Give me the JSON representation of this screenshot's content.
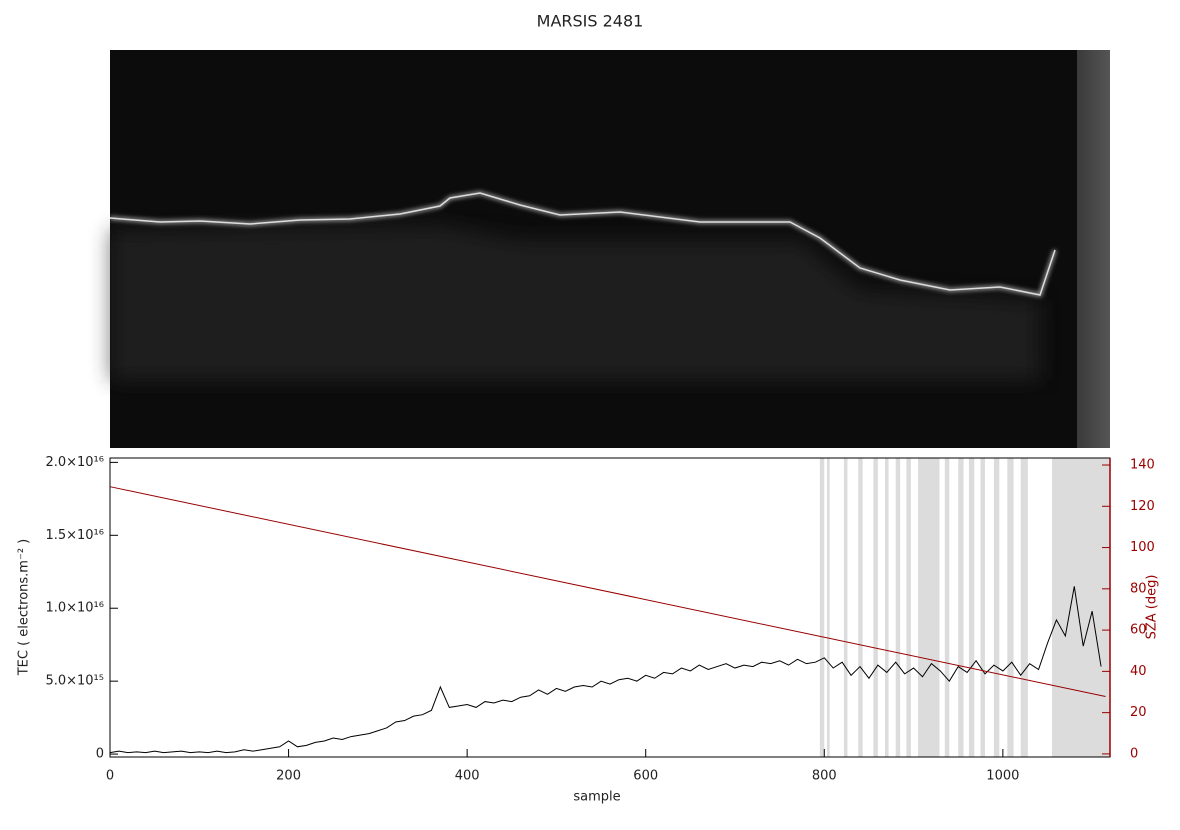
{
  "chart_data": {
    "type": "line",
    "title": "MARSIS 2481",
    "x_label": "sample",
    "y_label": "TEC ( electrons.m⁻² )",
    "y2_label": "SZA (deg)",
    "xlim": [
      0,
      1120
    ],
    "xticks": [
      0,
      200,
      400,
      600,
      800,
      1000
    ],
    "ylim": [
      -200000000000000.0,
      2.03e+16
    ],
    "yticks": [
      0,
      {
        "value": 5000000000000000.0,
        "label": "5.0×10¹⁵"
      },
      {
        "value": 1e+16,
        "label": "1.0×10¹⁶"
      },
      {
        "value": 1.5e+16,
        "label": "1.5×10¹⁶"
      },
      {
        "value": 2e+16,
        "label": "2.0×10¹⁶"
      }
    ],
    "y2lim": [
      -1.5,
      143.4
    ],
    "y2ticks": [
      0,
      20,
      40,
      60,
      80,
      100,
      120,
      140
    ],
    "y2_color": "#990000",
    "shade_color": "#dcdcdc",
    "shaded_ranges": [
      [
        795,
        800
      ],
      [
        803,
        806
      ],
      [
        822,
        826
      ],
      [
        838,
        843
      ],
      [
        855,
        860
      ],
      [
        868,
        872
      ],
      [
        880,
        885
      ],
      [
        892,
        897
      ],
      [
        905,
        929
      ],
      [
        935,
        940
      ],
      [
        950,
        956
      ],
      [
        962,
        968
      ],
      [
        975,
        980
      ],
      [
        990,
        996
      ],
      [
        1005,
        1012
      ],
      [
        1020,
        1028
      ],
      [
        1055,
        1120
      ]
    ],
    "series": [
      {
        "name": "TEC",
        "color": "#000000",
        "x": [
          0,
          10,
          20,
          30,
          40,
          50,
          60,
          70,
          80,
          90,
          100,
          110,
          120,
          130,
          140,
          150,
          160,
          170,
          180,
          190,
          200,
          210,
          220,
          230,
          240,
          250,
          260,
          270,
          280,
          290,
          300,
          310,
          320,
          330,
          340,
          350,
          360,
          370,
          380,
          390,
          400,
          410,
          420,
          430,
          440,
          450,
          460,
          470,
          480,
          490,
          500,
          510,
          520,
          530,
          540,
          550,
          560,
          570,
          580,
          590,
          600,
          610,
          620,
          630,
          640,
          650,
          660,
          670,
          680,
          690,
          700,
          710,
          720,
          730,
          740,
          750,
          760,
          770,
          780,
          790,
          800,
          810,
          820,
          830,
          840,
          850,
          860,
          870,
          880,
          890,
          900,
          910,
          920,
          930,
          940,
          950,
          960,
          970,
          980,
          990,
          1000,
          1010,
          1020,
          1030,
          1040,
          1050,
          1060,
          1070,
          1080,
          1090,
          1100,
          1110
        ],
        "values": [
          100000000000000.0,
          200000000000000.0,
          100000000000000.0,
          150000000000000.0,
          100000000000000.0,
          200000000000000.0,
          100000000000000.0,
          150000000000000.0,
          200000000000000.0,
          100000000000000.0,
          150000000000000.0,
          100000000000000.0,
          200000000000000.0,
          100000000000000.0,
          150000000000000.0,
          300000000000000.0,
          200000000000000.0,
          300000000000000.0,
          400000000000000.0,
          500000000000000.0,
          900000000000000.0,
          500000000000000.0,
          600000000000000.0,
          800000000000000.0,
          900000000000000.0,
          1100000000000000.0,
          1000000000000000.0,
          1200000000000000.0,
          1300000000000000.0,
          1400000000000000.0,
          1600000000000000.0,
          1800000000000000.0,
          2200000000000000.0,
          2300000000000000.0,
          2600000000000000.0,
          2700000000000000.0,
          3000000000000000.0,
          4600000000000000.0,
          3200000000000000.0,
          3300000000000000.0,
          3400000000000000.0,
          3200000000000000.0,
          3600000000000000.0,
          3500000000000000.0,
          3700000000000000.0,
          3600000000000000.0,
          3900000000000000.0,
          4000000000000000.0,
          4400000000000000.0,
          4100000000000000.0,
          4500000000000000.0,
          4300000000000000.0,
          4600000000000000.0,
          4700000000000000.0,
          4600000000000000.0,
          5000000000000000.0,
          4800000000000000.0,
          5100000000000000.0,
          5200000000000000.0,
          5000000000000000.0,
          5400000000000000.0,
          5200000000000000.0,
          5600000000000000.0,
          5500000000000000.0,
          5900000000000000.0,
          5700000000000000.0,
          6100000000000000.0,
          5800000000000000.0,
          6000000000000000.0,
          6200000000000000.0,
          5900000000000000.0,
          6100000000000000.0,
          6000000000000000.0,
          6300000000000000.0,
          6200000000000000.0,
          6400000000000000.0,
          6100000000000000.0,
          6500000000000000.0,
          6200000000000000.0,
          6300000000000000.0,
          6600000000000000.0,
          5900000000000000.0,
          6300000000000000.0,
          5400000000000000.0,
          6000000000000000.0,
          5200000000000000.0,
          6100000000000000.0,
          5600000000000000.0,
          6300000000000000.0,
          5500000000000000.0,
          5900000000000000.0,
          5300000000000000.0,
          6200000000000000.0,
          5700000000000000.0,
          5000000000000000.0,
          6000000000000000.0,
          5600000000000000.0,
          6400000000000000.0,
          5500000000000000.0,
          6100000000000000.0,
          5700000000000000.0,
          6300000000000000.0,
          5400000000000000.0,
          6200000000000000.0,
          5800000000000000.0,
          7600000000000000.0,
          9200000000000000.0,
          8100000000000000.0,
          1.15e+16,
          7400000000000000.0,
          9800000000000000.0,
          6000000000000000.0
        ]
      },
      {
        "name": "SZA",
        "color": "#990000",
        "axis": "y2",
        "x": [
          0,
          1115
        ],
        "values": [
          129.5,
          27.8
        ]
      }
    ]
  }
}
